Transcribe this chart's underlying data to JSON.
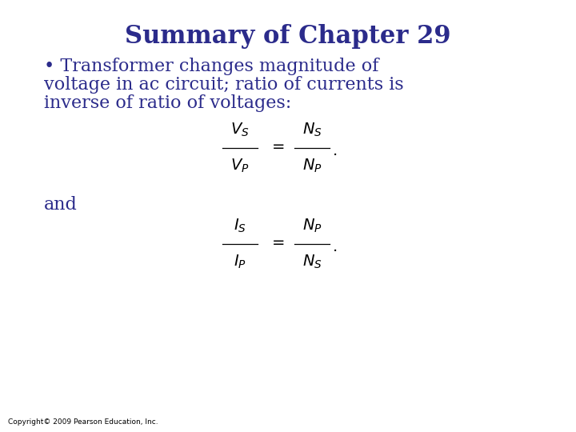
{
  "title": "Summary of Chapter 29",
  "title_color": "#2b2b8b",
  "title_fontsize": 22,
  "body_color": "#2b2b8b",
  "body_fontsize": 16,
  "bullet_line1": "• Transformer changes magnitude of",
  "bullet_line2": "voltage in ac circuit; ratio of currents is",
  "bullet_line3": "inverse of ratio of voltages:",
  "and_text": "and",
  "eq_fontsize": 14,
  "copyright": "Copyright© 2009 Pearson Education, Inc.",
  "bg_color": "#ffffff",
  "text_color_black": "#000000",
  "eq1_left_num": "$\\mathit{V}_S$",
  "eq1_left_den": "$\\mathit{V}_P$",
  "eq1_right_num": "$\\mathit{N}_S$",
  "eq1_right_den": "$\\mathit{N}_P$",
  "eq2_left_num": "$\\mathit{I}_S$",
  "eq2_left_den": "$\\mathit{I}_P$",
  "eq2_right_num": "$\\mathit{N}_P$",
  "eq2_right_den": "$\\mathit{N}_S$",
  "dash": "=",
  "dot": "."
}
